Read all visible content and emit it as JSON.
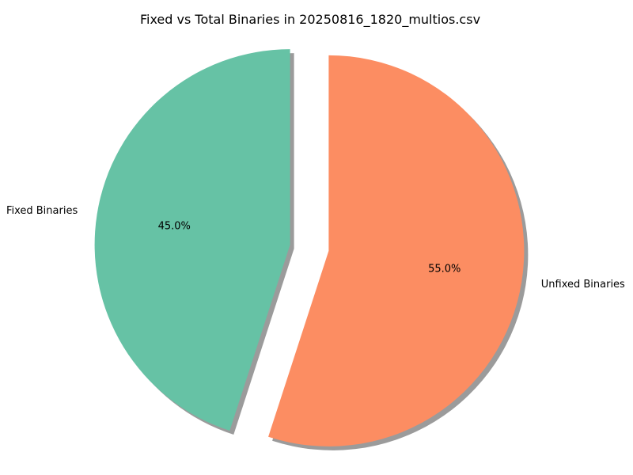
{
  "chart_data": {
    "type": "pie",
    "title": "Fixed vs Total Binaries in 20250816_1820_multios.csv",
    "slices": [
      {
        "label": "Fixed Binaries",
        "value": 45.0,
        "pct_label": "45.0%",
        "color": "#66c2a5",
        "exploded": true
      },
      {
        "label": "Unfixed Binaries",
        "value": 55.0,
        "pct_label": "55.0%",
        "color": "#fc8d62",
        "exploded": true
      }
    ],
    "start_angle_deg": 90,
    "direction": "counterclockwise",
    "shadow": true,
    "legend": "none"
  }
}
